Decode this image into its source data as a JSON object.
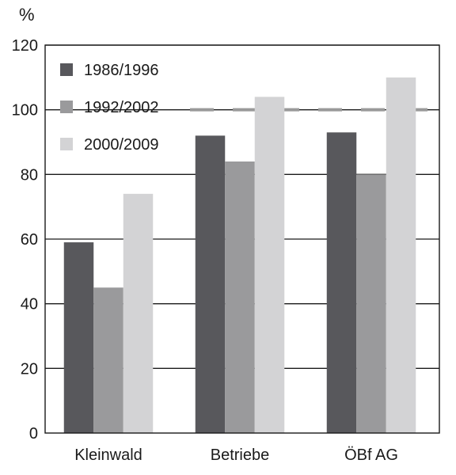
{
  "chart_data": {
    "type": "bar",
    "unit": "%",
    "categories": [
      "Kleinwald",
      "Betriebe",
      "ÖBf AG"
    ],
    "series": [
      {
        "name": "1986/1996",
        "color": "#58585c",
        "values": [
          59,
          92,
          93
        ]
      },
      {
        "name": "1992/2002",
        "color": "#9a9a9c",
        "values": [
          45,
          84,
          80
        ]
      },
      {
        "name": "2000/2009",
        "color": "#d3d3d5",
        "values": [
          74,
          104,
          110
        ]
      }
    ],
    "reference_line": {
      "value": 100,
      "style": "dashed",
      "color": "#999999"
    },
    "ylim": [
      0,
      120
    ],
    "yticks": [
      0,
      20,
      40,
      60,
      80,
      100,
      120
    ],
    "grid": true,
    "legend_position": "top-left"
  }
}
